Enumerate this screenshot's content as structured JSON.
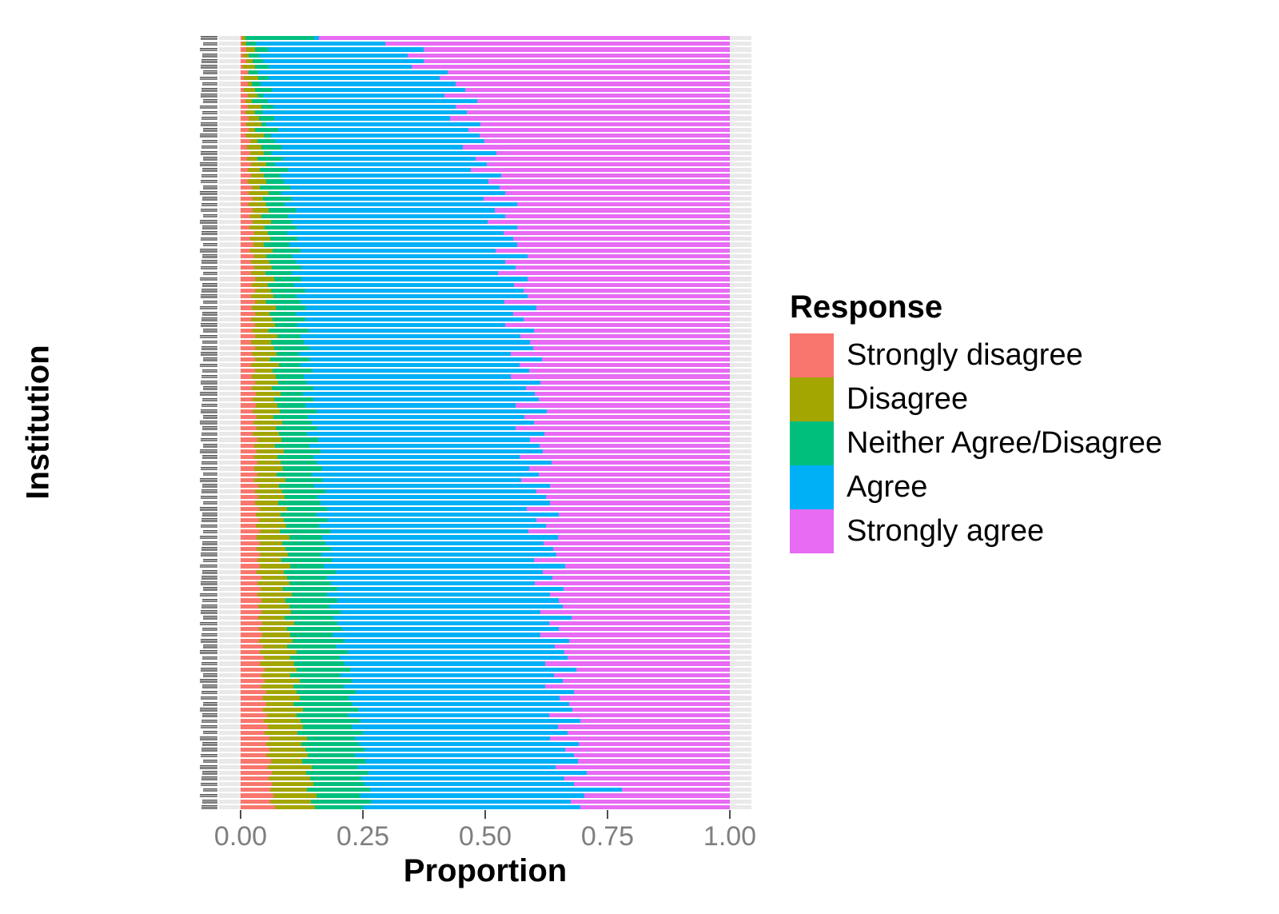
{
  "figure": {
    "background": "#FFFFFF"
  },
  "x_axis": {
    "title": "Proportion",
    "tick_labels": [
      "0.00",
      "0.25",
      "0.50",
      "0.75",
      "1.00"
    ],
    "tick_values": [
      0,
      0.25,
      0.5,
      0.75,
      1.0
    ],
    "text_color": "#7F7F7F",
    "tick_mark_color": "#4D4D4D"
  },
  "y_axis": {
    "title": "Institution",
    "n_categories": 135,
    "labels_illegible_miniature": true
  },
  "legend": {
    "title": "Response",
    "entries": [
      {
        "label": "Strongly disagree",
        "color": "#F8766D"
      },
      {
        "label": "Disagree",
        "color": "#A3A500"
      },
      {
        "label": "Neither Agree/Disagree",
        "color": "#00BF7D"
      },
      {
        "label": "Agree",
        "color": "#00B0F6"
      },
      {
        "label": "Strongly agree",
        "color": "#E76BF3"
      }
    ]
  },
  "style": {
    "row_stripe_color": "#E9E9E9",
    "panel_background": "#FFFFFF"
  },
  "chart_data": {
    "type": "bar",
    "orientation": "horizontal",
    "stacked": true,
    "normalized": true,
    "xlabel": "Proportion",
    "ylabel": "Institution",
    "xlim": [
      0,
      1
    ],
    "grid": "light horizontal stripe per category",
    "legend_position": "right",
    "series_names": [
      "Strongly disagree",
      "Disagree",
      "Neither Agree/Disagree",
      "Agree",
      "Strongly agree"
    ],
    "rows_order": "top to bottom",
    "rows": [
      [
        0.004,
        0.006,
        0.14,
        0.01,
        0.84
      ],
      [
        0.003,
        0.008,
        0.02,
        0.265,
        0.704
      ],
      [
        0.012,
        0.018,
        0.025,
        0.319,
        0.626
      ],
      [
        0.005,
        0.012,
        0.021,
        0.303,
        0.659
      ],
      [
        0.012,
        0.012,
        0.021,
        0.329,
        0.626
      ],
      [
        0.005,
        0.025,
        0.027,
        0.293,
        0.65
      ],
      [
        0.014,
        0.003,
        0.019,
        0.387,
        0.577
      ],
      [
        0.007,
        0.029,
        0.021,
        0.35,
        0.593
      ],
      [
        0.014,
        0.009,
        0.018,
        0.399,
        0.56
      ],
      [
        0.007,
        0.023,
        0.034,
        0.396,
        0.54
      ],
      [
        0.015,
        0.02,
        0.013,
        0.368,
        0.584
      ],
      [
        0.009,
        0.014,
        0.032,
        0.428,
        0.517
      ],
      [
        0.015,
        0.027,
        0.025,
        0.373,
        0.56
      ],
      [
        0.009,
        0.021,
        0.016,
        0.416,
        0.538
      ],
      [
        0.017,
        0.02,
        0.031,
        0.36,
        0.572
      ],
      [
        0.011,
        0.031,
        0.011,
        0.438,
        0.509
      ],
      [
        0.017,
        0.012,
        0.048,
        0.388,
        0.535
      ],
      [
        0.011,
        0.037,
        0.014,
        0.426,
        0.512
      ],
      [
        0.019,
        0.016,
        0.036,
        0.428,
        0.501
      ],
      [
        0.013,
        0.029,
        0.041,
        0.372,
        0.545
      ],
      [
        0.019,
        0.028,
        0.017,
        0.459,
        0.477
      ],
      [
        0.013,
        0.021,
        0.053,
        0.394,
        0.519
      ],
      [
        0.021,
        0.032,
        0.018,
        0.432,
        0.497
      ],
      [
        0.015,
        0.025,
        0.056,
        0.374,
        0.53
      ],
      [
        0.021,
        0.026,
        0.034,
        0.452,
        0.467
      ],
      [
        0.015,
        0.037,
        0.037,
        0.418,
        0.493
      ],
      [
        0.023,
        0.016,
        0.063,
        0.428,
        0.47
      ],
      [
        0.017,
        0.041,
        0.025,
        0.458,
        0.459
      ],
      [
        0.024,
        0.021,
        0.06,
        0.392,
        0.503
      ],
      [
        0.017,
        0.035,
        0.038,
        0.475,
        0.435
      ],
      [
        0.025,
        0.032,
        0.056,
        0.407,
        0.48
      ],
      [
        0.019,
        0.024,
        0.054,
        0.444,
        0.459
      ],
      [
        0.025,
        0.037,
        0.042,
        0.401,
        0.495
      ],
      [
        0.018,
        0.031,
        0.066,
        0.45,
        0.435
      ],
      [
        0.027,
        0.028,
        0.04,
        0.443,
        0.462
      ],
      [
        0.02,
        0.04,
        0.056,
        0.442,
        0.442
      ],
      [
        0.026,
        0.021,
        0.052,
        0.467,
        0.434
      ],
      [
        0.02,
        0.045,
        0.058,
        0.398,
        0.479
      ],
      [
        0.028,
        0.024,
        0.054,
        0.48,
        0.414
      ],
      [
        0.021,
        0.038,
        0.054,
        0.428,
        0.459
      ],
      [
        0.028,
        0.035,
        0.062,
        0.437,
        0.438
      ],
      [
        0.021,
        0.029,
        0.054,
        0.422,
        0.474
      ],
      [
        0.029,
        0.04,
        0.056,
        0.461,
        0.414
      ],
      [
        0.023,
        0.032,
        0.054,
        0.45,
        0.441
      ],
      [
        0.029,
        0.033,
        0.07,
        0.447,
        0.421
      ],
      [
        0.022,
        0.045,
        0.048,
        0.471,
        0.414
      ],
      [
        0.03,
        0.023,
        0.069,
        0.418,
        0.46
      ],
      [
        0.023,
        0.049,
        0.061,
        0.471,
        0.396
      ],
      [
        0.029,
        0.03,
        0.053,
        0.446,
        0.442
      ],
      [
        0.022,
        0.043,
        0.068,
        0.445,
        0.422
      ],
      [
        0.03,
        0.04,
        0.046,
        0.425,
        0.459
      ],
      [
        0.023,
        0.034,
        0.082,
        0.461,
        0.4
      ],
      [
        0.029,
        0.046,
        0.047,
        0.45,
        0.428
      ],
      [
        0.022,
        0.04,
        0.067,
        0.462,
        0.409
      ],
      [
        0.03,
        0.039,
        0.071,
        0.458,
        0.402
      ],
      [
        0.023,
        0.05,
        0.046,
        0.433,
        0.448
      ],
      [
        0.029,
        0.031,
        0.08,
        0.476,
        0.384
      ],
      [
        0.022,
        0.057,
        0.044,
        0.447,
        0.43
      ],
      [
        0.03,
        0.035,
        0.081,
        0.444,
        0.41
      ],
      [
        0.023,
        0.049,
        0.057,
        0.424,
        0.447
      ],
      [
        0.029,
        0.048,
        0.059,
        0.476,
        0.388
      ],
      [
        0.023,
        0.04,
        0.085,
        0.435,
        0.417
      ],
      [
        0.031,
        0.051,
        0.045,
        0.475,
        0.398
      ],
      [
        0.024,
        0.045,
        0.079,
        0.461,
        0.391
      ],
      [
        0.031,
        0.044,
        0.057,
        0.43,
        0.438
      ],
      [
        0.024,
        0.056,
        0.075,
        0.471,
        0.374
      ],
      [
        0.032,
        0.035,
        0.071,
        0.442,
        0.42
      ],
      [
        0.026,
        0.059,
        0.061,
        0.453,
        0.401
      ],
      [
        0.032,
        0.04,
        0.085,
        0.405,
        0.438
      ],
      [
        0.025,
        0.054,
        0.057,
        0.485,
        0.379
      ],
      [
        0.034,
        0.049,
        0.075,
        0.434,
        0.408
      ],
      [
        0.027,
        0.043,
        0.071,
        0.47,
        0.389
      ],
      [
        0.033,
        0.056,
        0.075,
        0.454,
        0.382
      ],
      [
        0.027,
        0.048,
        0.073,
        0.423,
        0.429
      ],
      [
        0.035,
        0.047,
        0.073,
        0.48,
        0.365
      ],
      [
        0.028,
        0.059,
        0.079,
        0.424,
        0.41
      ],
      [
        0.035,
        0.038,
        0.073,
        0.463,
        0.391
      ],
      [
        0.028,
        0.064,
        0.075,
        0.406,
        0.427
      ],
      [
        0.036,
        0.043,
        0.071,
        0.483,
        0.367
      ],
      [
        0.03,
        0.055,
        0.089,
        0.43,
        0.396
      ],
      [
        0.036,
        0.054,
        0.067,
        0.467,
        0.376
      ],
      [
        0.029,
        0.048,
        0.087,
        0.468,
        0.368
      ],
      [
        0.038,
        0.057,
        0.081,
        0.409,
        0.415
      ],
      [
        0.031,
        0.051,
        0.073,
        0.495,
        0.35
      ],
      [
        0.037,
        0.052,
        0.087,
        0.429,
        0.395
      ],
      [
        0.031,
        0.062,
        0.067,
        0.464,
        0.376
      ],
      [
        0.039,
        0.041,
        0.103,
        0.405,
        0.412
      ],
      [
        0.032,
        0.067,
        0.067,
        0.482,
        0.352
      ],
      [
        0.039,
        0.046,
        0.089,
        0.445,
        0.381
      ],
      [
        0.032,
        0.06,
        0.093,
        0.454,
        0.361
      ],
      [
        0.04,
        0.057,
        0.068,
        0.481,
        0.354
      ],
      [
        0.034,
        0.049,
        0.103,
        0.414,
        0.4
      ],
      [
        0.04,
        0.062,
        0.068,
        0.494,
        0.336
      ],
      [
        0.033,
        0.056,
        0.105,
        0.424,
        0.382
      ],
      [
        0.042,
        0.053,
        0.082,
        0.461,
        0.362
      ],
      [
        0.035,
        0.065,
        0.085,
        0.416,
        0.399
      ],
      [
        0.041,
        0.046,
        0.11,
        0.463,
        0.34
      ],
      [
        0.035,
        0.07,
        0.071,
        0.456,
        0.368
      ],
      [
        0.043,
        0.049,
        0.106,
        0.453,
        0.349
      ],
      [
        0.036,
        0.063,
        0.083,
        0.476,
        0.342
      ],
      [
        0.043,
        0.06,
        0.102,
        0.407,
        0.388
      ],
      [
        0.036,
        0.054,
        0.099,
        0.487,
        0.324
      ],
      [
        0.044,
        0.065,
        0.088,
        0.433,
        0.37
      ],
      [
        0.038,
        0.057,
        0.113,
        0.442,
        0.35
      ],
      [
        0.044,
        0.058,
        0.086,
        0.425,
        0.387
      ],
      [
        0.038,
        0.069,
        0.103,
        0.462,
        0.328
      ],
      [
        0.046,
        0.049,
        0.1,
        0.448,
        0.357
      ],
      [
        0.04,
        0.074,
        0.105,
        0.443,
        0.338
      ],
      [
        0.047,
        0.054,
        0.102,
        0.466,
        0.331
      ],
      [
        0.04,
        0.069,
        0.103,
        0.41,
        0.378
      ],
      [
        0.049,
        0.065,
        0.11,
        0.462,
        0.314
      ],
      [
        0.043,
        0.058,
        0.103,
        0.436,
        0.36
      ],
      [
        0.049,
        0.072,
        0.106,
        0.432,
        0.341
      ],
      [
        0.043,
        0.065,
        0.103,
        0.411,
        0.378
      ],
      [
        0.052,
        0.063,
        0.12,
        0.446,
        0.319
      ],
      [
        0.045,
        0.076,
        0.099,
        0.432,
        0.348
      ],
      [
        0.052,
        0.056,
        0.12,
        0.443,
        0.329
      ],
      [
        0.046,
        0.081,
        0.113,
        0.438,
        0.322
      ],
      [
        0.054,
        0.061,
        0.106,
        0.41,
        0.369
      ],
      [
        0.048,
        0.074,
        0.121,
        0.452,
        0.305
      ],
      [
        0.055,
        0.073,
        0.099,
        0.422,
        0.351
      ],
      [
        0.049,
        0.067,
        0.134,
        0.419,
        0.331
      ],
      [
        0.058,
        0.078,
        0.098,
        0.398,
        0.368
      ],
      [
        0.052,
        0.072,
        0.118,
        0.449,
        0.309
      ],
      [
        0.059,
        0.073,
        0.121,
        0.41,
        0.337
      ],
      [
        0.053,
        0.085,
        0.095,
        0.449,
        0.318
      ],
      [
        0.062,
        0.064,
        0.129,
        0.434,
        0.311
      ],
      [
        0.056,
        0.09,
        0.092,
        0.405,
        0.357
      ],
      [
        0.063,
        0.071,
        0.128,
        0.445,
        0.293
      ],
      [
        0.057,
        0.085,
        0.104,
        0.415,
        0.339
      ],
      [
        0.066,
        0.082,
        0.105,
        0.428,
        0.319
      ],
      [
        0.06,
        0.076,
        0.129,
        0.515,
        0.22
      ],
      [
        0.067,
        0.089,
        0.089,
        0.458,
        0.297
      ],
      [
        0.061,
        0.083,
        0.122,
        0.409,
        0.325
      ],
      [
        0.07,
        0.082,
        0.098,
        0.444,
        0.306
      ]
    ]
  }
}
